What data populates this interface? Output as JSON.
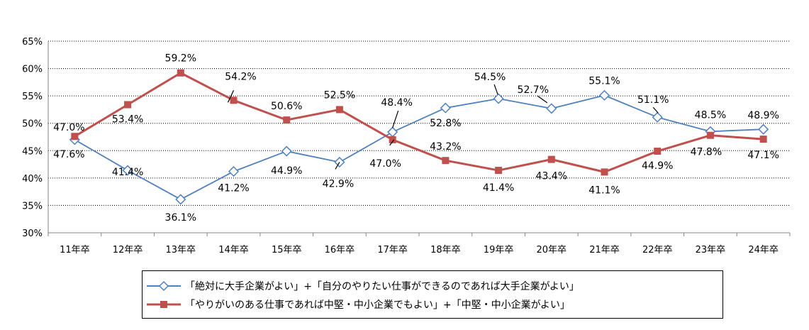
{
  "chart_data": {
    "type": "line",
    "categories": [
      "11年卒",
      "12年卒",
      "13年卒",
      "14年卒",
      "15年卒",
      "16年卒",
      "17年卒",
      "18年卒",
      "19年卒",
      "20年卒",
      "21年卒",
      "22年卒",
      "23年卒",
      "24年卒"
    ],
    "ylim": [
      30,
      65
    ],
    "yticks": [
      "30%",
      "35%",
      "40%",
      "45%",
      "50%",
      "55%",
      "60%",
      "65%"
    ],
    "ytick_values": [
      30,
      35,
      40,
      45,
      50,
      55,
      60,
      65
    ],
    "grid": true,
    "legend_position": "bottom",
    "series": [
      {
        "name": "「絶対に大手企業がよい」+「自分のやりたい仕事ができるのであれば大手企業がよい」",
        "color": "#4F81BD",
        "marker": "diamond-open",
        "values": [
          47.0,
          41.4,
          36.1,
          41.2,
          44.9,
          42.9,
          48.4,
          52.8,
          54.5,
          52.7,
          55.1,
          51.1,
          48.5,
          48.9
        ],
        "labels": [
          "47.0%",
          "41.4%",
          "36.1%",
          "41.2%",
          "44.9%",
          "42.9%",
          "48.4%",
          "52.8%",
          "54.5%",
          "52.7%",
          "55.1%",
          "51.1%",
          "48.5%",
          "48.9%"
        ]
      },
      {
        "name": "「やりがいのある仕事であれば中堅・中小企業でもよい」+「中堅・中小企業がよい」",
        "color": "#C0504D",
        "marker": "square-filled",
        "values": [
          47.6,
          53.4,
          59.2,
          54.2,
          50.6,
          52.5,
          47.0,
          43.2,
          41.4,
          43.4,
          41.1,
          44.9,
          47.8,
          47.1
        ],
        "labels": [
          "47.6%",
          "53.4%",
          "59.2%",
          "54.2%",
          "50.6%",
          "52.5%",
          "47.0%",
          "43.2%",
          "41.4%",
          "43.4%",
          "41.1%",
          "44.9%",
          "47.8%",
          "47.1%"
        ]
      }
    ]
  }
}
